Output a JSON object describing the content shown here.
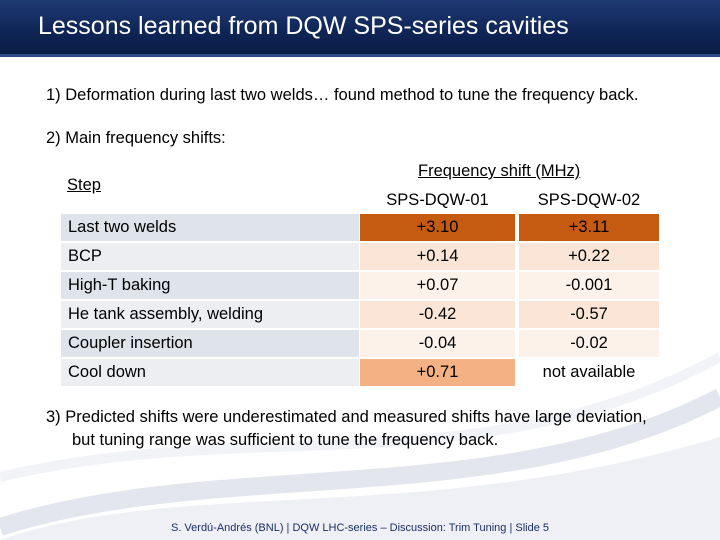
{
  "title": "Lessons learned from DQW SPS-series cavities",
  "points": {
    "p1": "1)  Deformation during last two welds… found method to tune the frequency back.",
    "p2": "2)  Main frequency shifts:",
    "p3_line1": "3)  Predicted shifts were underestimated and measured shifts have large deviation,",
    "p3_line2": "but tuning range was sufficient to tune the frequency back."
  },
  "table": {
    "step_header": "Step",
    "group_header": "Frequency shift (MHz)",
    "col1_header": "SPS-DQW-01",
    "col2_header": "SPS-DQW-02",
    "rows": [
      {
        "step": "Last two welds",
        "v1": "+3.10",
        "v2": "+3.11",
        "c1": "#c55a11",
        "c2": "#c55a11"
      },
      {
        "step": "BCP",
        "v1": "+0.14",
        "v2": "+0.22",
        "c1": "#fbe5d6",
        "c2": "#fbe5d6"
      },
      {
        "step": "High-T baking",
        "v1": "+0.07",
        "v2": "-0.001",
        "c1": "#fdf2ea",
        "c2": "#fdf2ea"
      },
      {
        "step": "He tank assembly, welding",
        "v1": "-0.42",
        "v2": "-0.57",
        "c1": "#fbe5d6",
        "c2": "#fbe5d6"
      },
      {
        "step": "Coupler insertion",
        "v1": "-0.04",
        "v2": "-0.02",
        "c1": "#fdf2ea",
        "c2": "#fdf2ea"
      },
      {
        "step": "Cool down",
        "v1": "+0.71",
        "v2": "not available",
        "c1": "#f4b183",
        "c2": "transparent"
      }
    ]
  },
  "footer": "S. Verdú-Andrés (BNL) | DQW LHC-series – Discussion: Trim Tuning |   Slide  5"
}
